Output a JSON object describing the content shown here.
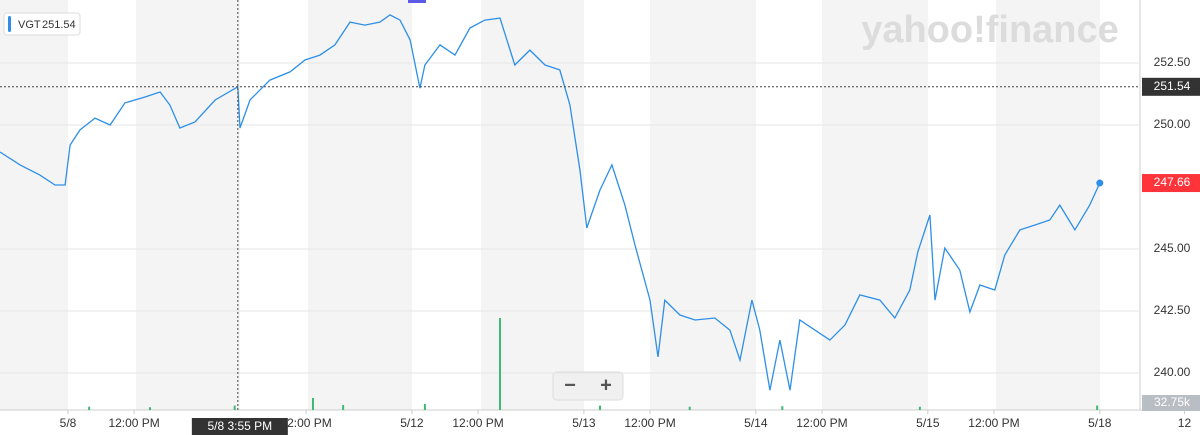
{
  "chart_data": {
    "type": "line",
    "symbol": "VGT",
    "watermark": "yahoo!finance",
    "zoom_controls": [
      "−",
      "+"
    ],
    "xlim": [
      -2.57,
      40.52
    ],
    "xticks": [
      {
        "value": 0,
        "label": "5/8"
      },
      {
        "value": 2.5,
        "label": "12:00 PM"
      },
      {
        "value": 9,
        "label": "12:00 PM"
      },
      {
        "value": 13,
        "label": "5/12"
      },
      {
        "value": 15.5,
        "label": "12:00 PM"
      },
      {
        "value": 19.5,
        "label": "5/13"
      },
      {
        "value": 22,
        "label": "12:00 PM"
      },
      {
        "value": 26,
        "label": "5/14"
      },
      {
        "value": 28.5,
        "label": "12:00 PM"
      },
      {
        "value": 32.5,
        "label": "5/15"
      },
      {
        "value": 35,
        "label": "12:00 PM"
      },
      {
        "value": 39,
        "label": "5/18"
      },
      {
        "value": 42.2,
        "label": "12"
      }
    ],
    "ylim": [
      238.51,
      255.04
    ],
    "yticks": [
      {
        "value": 240,
        "label": "240.00"
      },
      {
        "value": 242.5,
        "label": "242.50"
      },
      {
        "value": 245,
        "label": "245.00"
      },
      {
        "value": 250,
        "label": "250.00"
      },
      {
        "value": 252.5,
        "label": "252.50"
      }
    ],
    "grid": true,
    "series": [
      {
        "name": "VGT",
        "color": "#2d8fe8",
        "x": [
          -2.57,
          -1.81,
          -1.06,
          -0.49,
          -0.11,
          0.08,
          0.45,
          1.02,
          1.59,
          2.15,
          2.91,
          3.48,
          3.85,
          4.23,
          4.8,
          5.56,
          6.42,
          6.5,
          6.88,
          7.63,
          8.39,
          8.96,
          9.52,
          10.09,
          10.66,
          11.22,
          11.79,
          12.17,
          12.55,
          12.93,
          13.3,
          13.49,
          14.06,
          14.63,
          15.19,
          15.76,
          16.33,
          16.89,
          17.46,
          18.03,
          18.59,
          18.97,
          19.35,
          19.61,
          20.11,
          20.56,
          21.05,
          21.43,
          22,
          22.3,
          22.56,
          23.13,
          23.7,
          24.45,
          25.02,
          25.4,
          25.85,
          26.15,
          26.53,
          26.91,
          27.29,
          27.66,
          28.23,
          28.8,
          29.37,
          29.93,
          30.69,
          31.25,
          31.82,
          32.12,
          32.58,
          32.77,
          33.14,
          33.71,
          34.09,
          34.47,
          35.03,
          35.41,
          35.98,
          36.55,
          37.11,
          37.49,
          38.06,
          38.62,
          39.0
        ],
        "values": [
          248.91,
          248.39,
          247.98,
          247.58,
          247.58,
          249.19,
          249.8,
          250.28,
          250,
          250.89,
          251.13,
          251.33,
          250.81,
          249.88,
          250.12,
          251.01,
          251.54,
          249.88,
          251.01,
          251.81,
          252.14,
          252.62,
          252.82,
          253.23,
          254.15,
          254.03,
          254.15,
          254.44,
          254.23,
          253.43,
          251.49,
          252.42,
          253.23,
          252.82,
          253.91,
          254.23,
          254.31,
          252.42,
          253.02,
          252.42,
          252.22,
          250.81,
          248.19,
          245.85,
          247.38,
          248.39,
          246.77,
          245.16,
          242.94,
          240.65,
          242.94,
          242.34,
          242.14,
          242.22,
          241.73,
          240.52,
          242.94,
          241.73,
          239.31,
          241.33,
          239.31,
          242.14,
          241.73,
          241.33,
          241.94,
          243.15,
          242.94,
          242.22,
          243.35,
          244.88,
          246.37,
          242.94,
          245.04,
          244.15,
          242.46,
          243.55,
          243.35,
          244.76,
          245.77,
          245.97,
          246.17,
          246.77,
          245.77,
          246.77,
          247.66
        ]
      }
    ],
    "crosshair": {
      "x": 6.42,
      "value": 251.54,
      "x_label": "5/8 3:55 PM",
      "value_label": "251.54"
    },
    "last": {
      "value": 247.66,
      "label": "247.66",
      "color": "#ff333a"
    },
    "volume": {
      "color": "#3fb877",
      "ylim": [
        0,
        1000
      ],
      "label": "32.75k",
      "x": [
        0.8,
        3.1,
        6.3,
        9.26,
        10.4,
        13.49,
        16.33,
        20.11,
        23.5,
        27.0,
        32.2,
        38.9
      ],
      "values": [
        30,
        25,
        40,
        109,
        45,
        55,
        836,
        40,
        30,
        35,
        30,
        40
      ]
    }
  }
}
